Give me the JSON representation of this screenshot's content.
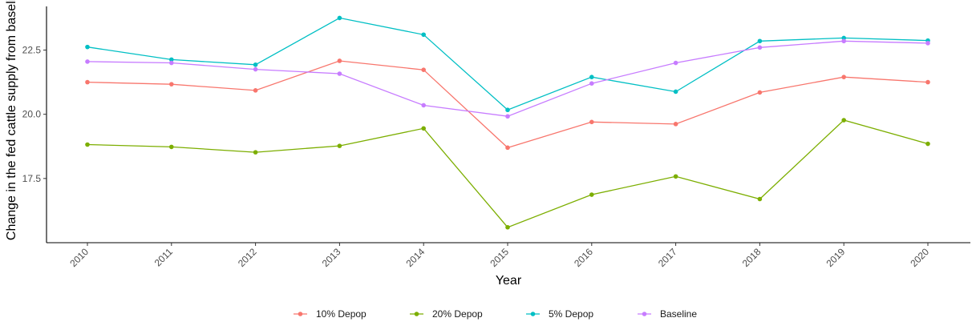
{
  "chart_data": {
    "type": "line",
    "xlabel": "Year",
    "ylabel": "Change in the fed cattle supply from baseline",
    "categories": [
      "2010",
      "2011",
      "2012",
      "2013",
      "2014",
      "2015",
      "2016",
      "2017",
      "2018",
      "2019",
      "2020"
    ],
    "y_ticks": [
      17.5,
      20.0,
      22.5
    ],
    "y_tick_labels": [
      "17.5",
      "20.0",
      "22.5"
    ],
    "ylim": [
      15.0,
      24.2
    ],
    "grid": false,
    "legend_position": "bottom",
    "series": [
      {
        "name": "10% Depop",
        "color": "#F8766D",
        "values": [
          21.25,
          21.17,
          20.93,
          22.08,
          21.73,
          18.7,
          19.7,
          19.62,
          20.85,
          21.45,
          21.25
        ]
      },
      {
        "name": "20% Depop",
        "color": "#7CAE00",
        "values": [
          18.82,
          18.73,
          18.52,
          18.77,
          19.45,
          15.6,
          16.87,
          17.58,
          16.7,
          19.77,
          18.85
        ]
      },
      {
        "name": "5% Depop",
        "color": "#00BFC4",
        "values": [
          22.62,
          22.13,
          21.93,
          23.75,
          23.1,
          20.17,
          21.45,
          20.88,
          22.85,
          22.97,
          22.87
        ]
      },
      {
        "name": "Baseline",
        "color": "#C77CFF",
        "values": [
          22.05,
          22.0,
          21.75,
          21.58,
          20.35,
          19.92,
          21.2,
          22.0,
          22.6,
          22.85,
          22.77
        ]
      }
    ]
  }
}
